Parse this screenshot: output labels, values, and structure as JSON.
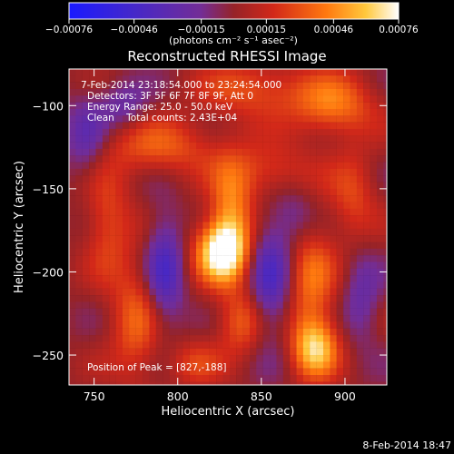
{
  "chart_data": {
    "type": "heatmap",
    "title": "Reconstructed RHESSI Image",
    "xlabel": "Heliocentric X (arcsec)",
    "ylabel": "Heliocentric Y (arcsec)",
    "xlim": [
      735,
      925
    ],
    "ylim": [
      -268,
      -78
    ],
    "x_ticks": [
      750,
      800,
      850,
      900
    ],
    "x_tick_labels": [
      "750",
      "800",
      "850",
      "900"
    ],
    "y_ticks": [
      -100,
      -150,
      -200,
      -250
    ],
    "y_tick_labels": [
      "−100",
      "−150",
      "−200",
      "−250"
    ],
    "colorbar": {
      "range": [
        -0.00076,
        0.00076
      ],
      "ticks": [
        -0.00076,
        -0.00046,
        -0.00015,
        0.00015,
        0.00046,
        0.00076
      ],
      "tick_labels": [
        "−0.00076",
        "−0.00046",
        "−0.00015",
        "0.00015",
        "0.00046",
        "0.00076"
      ],
      "units_label": "(photons cm⁻² s⁻¹ asec⁻²)",
      "colors": [
        "#1a1aff",
        "#3b1f9e",
        "#7a2a8a",
        "#c8281e",
        "#ff7a10",
        "#ffd24a",
        "#ffffff"
      ]
    },
    "annotations": {
      "time_range": "7-Feb-2014 23:18:54.000 to 23:24:54.000",
      "detectors": "Detectors: 3F 5F 6F 7F 8F 9F, Att 0",
      "energy_range": "Energy Range: 25.0 - 50.0 keV",
      "algorithm_counts": "Clean    Total counts: 2.43E+04",
      "peak_position": "Position of Peak = [827,-188]"
    },
    "peak": [
      827,
      -188
    ],
    "sources": [
      {
        "x": 826,
        "y": -188,
        "sx": 11,
        "sy": 13,
        "amp": 1.0,
        "rot": 0
      },
      {
        "x": 832,
        "y": -165,
        "sx": 9,
        "sy": 22,
        "amp": 0.55,
        "rot": 0
      },
      {
        "x": 838,
        "y": -230,
        "sx": 10,
        "sy": 14,
        "amp": 0.45,
        "rot": 0
      },
      {
        "x": 882,
        "y": -246,
        "sx": 10,
        "sy": 13,
        "amp": 0.78,
        "rot": 0
      },
      {
        "x": 880,
        "y": -205,
        "sx": 10,
        "sy": 24,
        "amp": 0.5,
        "rot": 0
      },
      {
        "x": 893,
        "y": -100,
        "sx": 17,
        "sy": 13,
        "amp": 0.55,
        "rot": 0
      },
      {
        "x": 790,
        "y": -125,
        "sx": 24,
        "sy": 12,
        "amp": 0.42,
        "rot": 0
      },
      {
        "x": 845,
        "y": -90,
        "sx": 22,
        "sy": 12,
        "amp": 0.4,
        "rot": 0
      },
      {
        "x": 775,
        "y": -230,
        "sx": 11,
        "sy": 26,
        "amp": 0.44,
        "rot": 0
      },
      {
        "x": 758,
        "y": -170,
        "sx": 10,
        "sy": 22,
        "amp": 0.38,
        "rot": 0
      },
      {
        "x": 855,
        "y": -140,
        "sx": 18,
        "sy": 12,
        "amp": 0.36,
        "rot": 0
      },
      {
        "x": 905,
        "y": -155,
        "sx": 10,
        "sy": 20,
        "amp": 0.34,
        "rot": 0
      },
      {
        "x": 810,
        "y": -255,
        "sx": 12,
        "sy": 10,
        "amp": 0.3,
        "rot": 0
      },
      {
        "x": 792,
        "y": -200,
        "sx": 8,
        "sy": 24,
        "amp": -0.55,
        "rot": 0
      },
      {
        "x": 855,
        "y": -205,
        "sx": 9,
        "sy": 26,
        "amp": -0.5,
        "rot": 0
      },
      {
        "x": 745,
        "y": -120,
        "sx": 9,
        "sy": 18,
        "amp": -0.35,
        "rot": 0
      },
      {
        "x": 768,
        "y": -100,
        "sx": 10,
        "sy": 10,
        "amp": -0.3,
        "rot": 0
      },
      {
        "x": 910,
        "y": -215,
        "sx": 8,
        "sy": 20,
        "amp": -0.3,
        "rot": 0
      },
      {
        "x": 870,
        "y": -165,
        "sx": 9,
        "sy": 14,
        "amp": -0.25,
        "rot": 0
      }
    ]
  },
  "footer": {
    "date_stamp": "8-Feb-2014 18:47"
  }
}
